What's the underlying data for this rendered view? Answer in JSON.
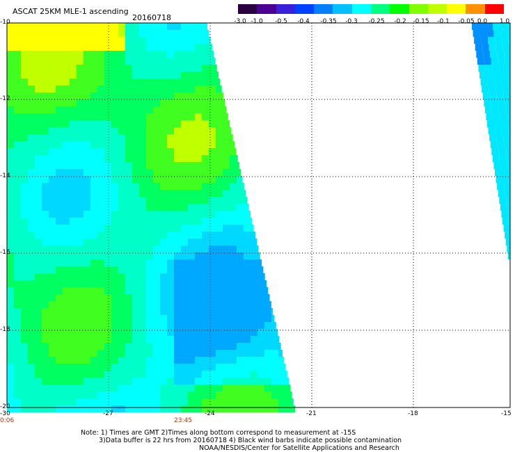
{
  "header": {
    "title": "ASCAT 25KM MLE-1 ascending",
    "date": "20160718"
  },
  "colorbar": {
    "colors": [
      "#2a0040",
      "#4a0090",
      "#3a20d8",
      "#0040ff",
      "#0080ff",
      "#00c0ff",
      "#00ffff",
      "#00ff80",
      "#00ff00",
      "#80ff00",
      "#c0ff00",
      "#ffff00",
      "#ff9000",
      "#ff0000"
    ],
    "labels": [
      "-3.0",
      "-1.0",
      "-0.5",
      "-0.4",
      "-0.35",
      "-0.3",
      "-0.25",
      "-0.2",
      "-0.15",
      "-0.1",
      "-0.05",
      "0.0",
      "1.0"
    ]
  },
  "axes": {
    "x_ticks": [
      "-30",
      "-27",
      "-24",
      "-21",
      "-18",
      "-15"
    ],
    "y_ticks": [
      "-10",
      "-12",
      "-14",
      "-16",
      "-18",
      "-20"
    ]
  },
  "time_labels": [
    "0:06",
    "23:45"
  ],
  "notes": [
    "Note: 1) Times are GMT 2)Times along bottom correspond to measurement at -15S",
    "3)Data buffer is 22 hrs from 20160718 4) Black wind barbs indicate possible contamination",
    "NOAA/NESDIS/Center for Satellite Applications and Research"
  ]
}
